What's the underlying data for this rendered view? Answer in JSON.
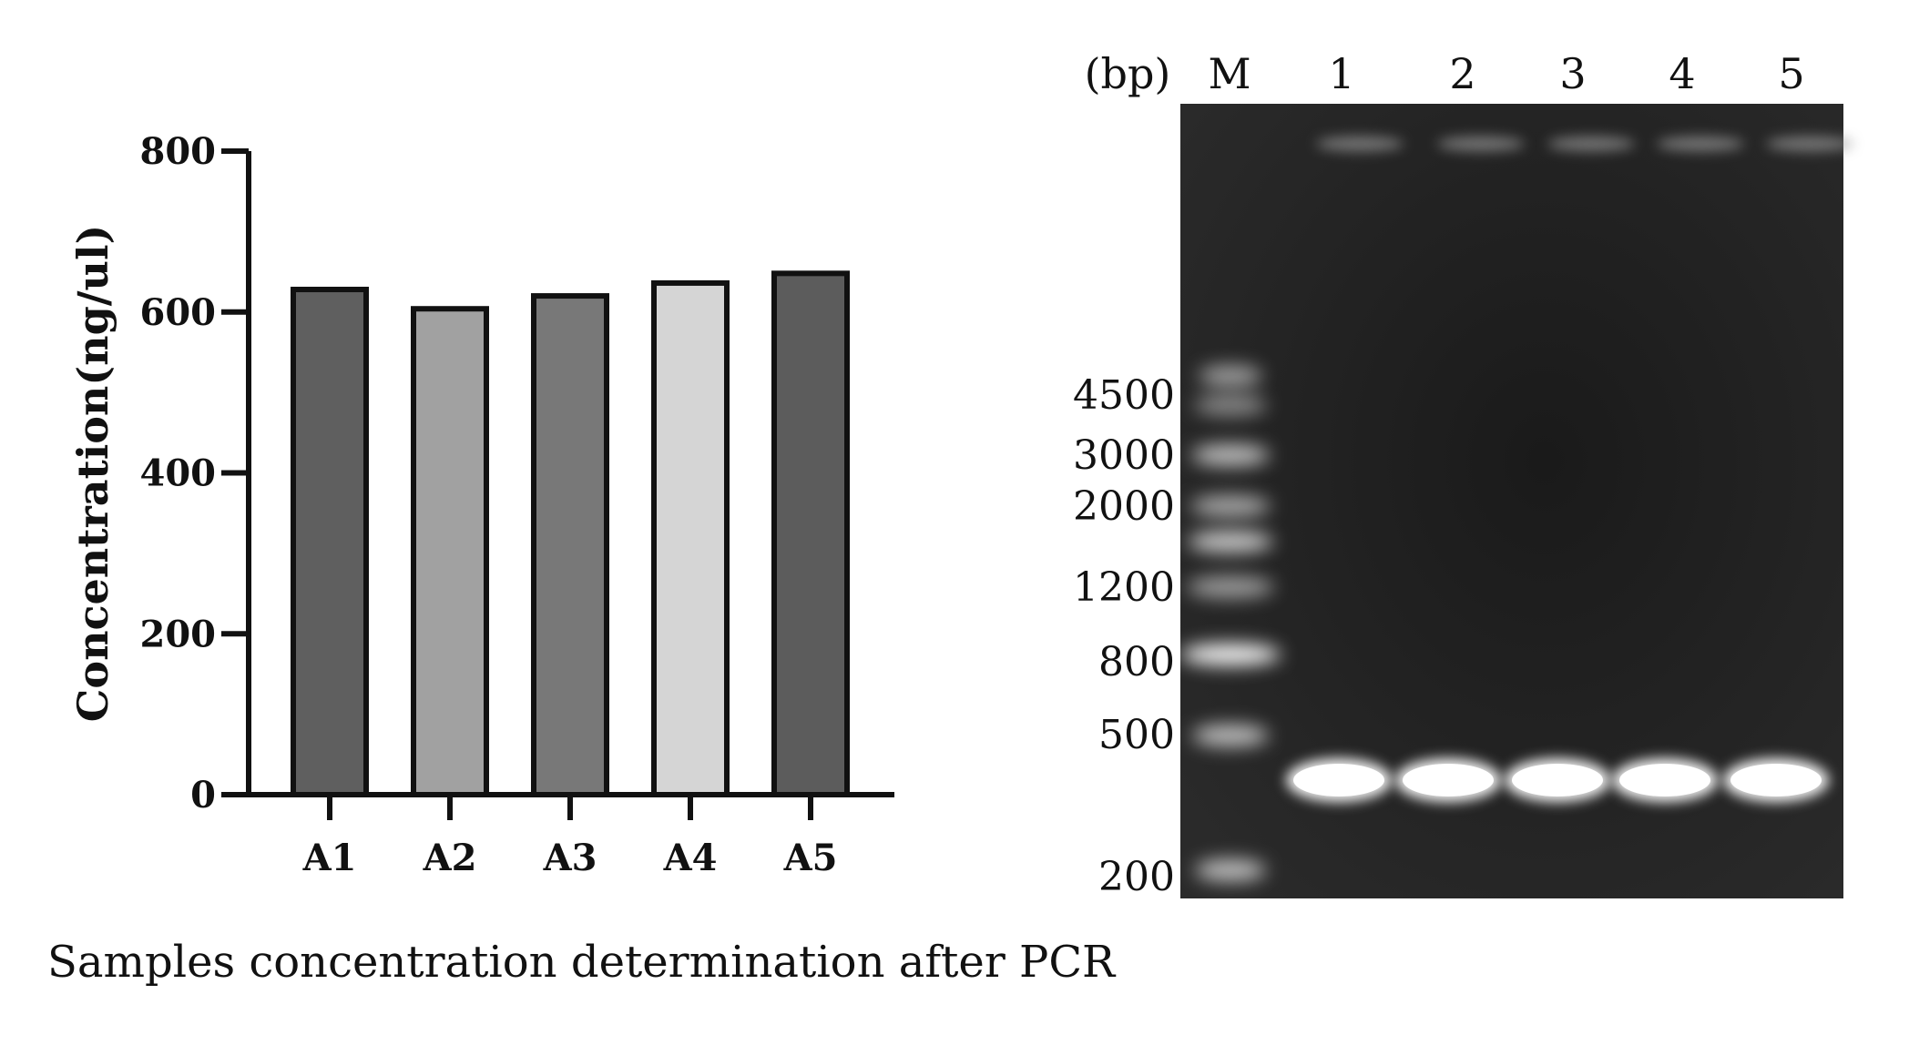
{
  "chart_data": {
    "type": "bar",
    "title": "",
    "xlabel": "",
    "ylabel": "Concentration(ng/ul)",
    "categories": [
      "A1",
      "A2",
      "A3",
      "A4",
      "A5"
    ],
    "values": [
      628,
      604,
      620,
      636,
      648
    ],
    "ylim": [
      0,
      800
    ],
    "yticks": [
      0,
      200,
      400,
      600,
      800
    ],
    "grid": false,
    "bar_colors": [
      "#5f5f5f",
      "#a1a1a1",
      "#787878",
      "#d5d5d5",
      "#5c5c5c"
    ]
  },
  "caption": "Samples concentration determination after PCR",
  "gel": {
    "unit_label": "(bp)",
    "lane_labels": [
      "M",
      "1",
      "2",
      "3",
      "4",
      "5"
    ],
    "marker_sizes": [
      "4500",
      "3000",
      "2000",
      "1200",
      "800",
      "500",
      "200"
    ],
    "colors": {
      "gel_background": "#1e1e1e",
      "band": "#ffffff"
    }
  }
}
